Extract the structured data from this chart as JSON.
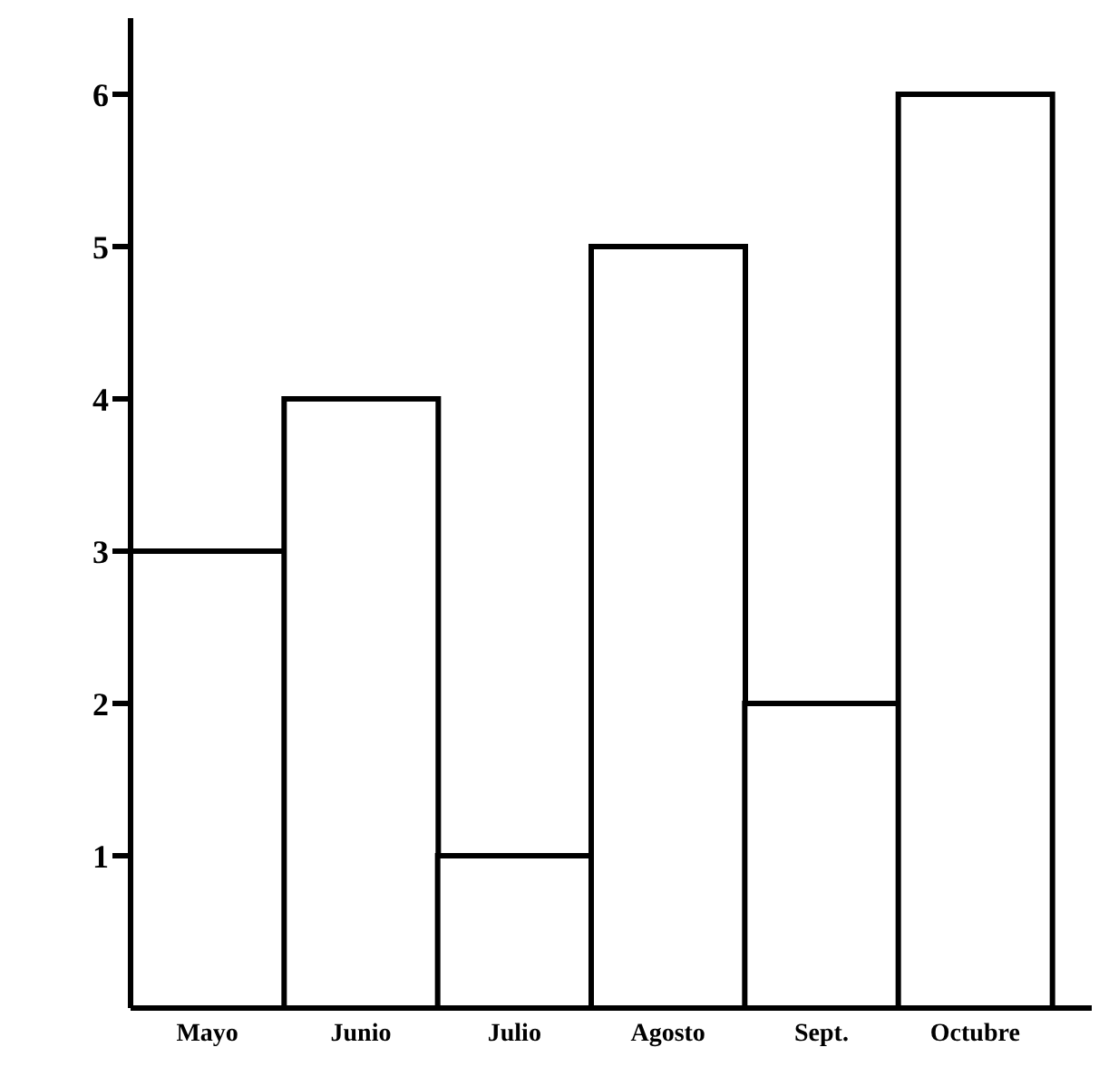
{
  "chart_data": {
    "type": "bar",
    "categories": [
      "Mayo",
      "Junio",
      "Julio",
      "Agosto",
      "Sept.",
      "Octubre"
    ],
    "values": [
      3,
      4,
      1,
      5,
      2,
      6
    ],
    "color": "#ffffff",
    "ylim": [
      0,
      6.5
    ],
    "yticks": [
      1,
      2,
      3,
      4,
      5,
      6
    ],
    "grid": false,
    "legend": false
  }
}
